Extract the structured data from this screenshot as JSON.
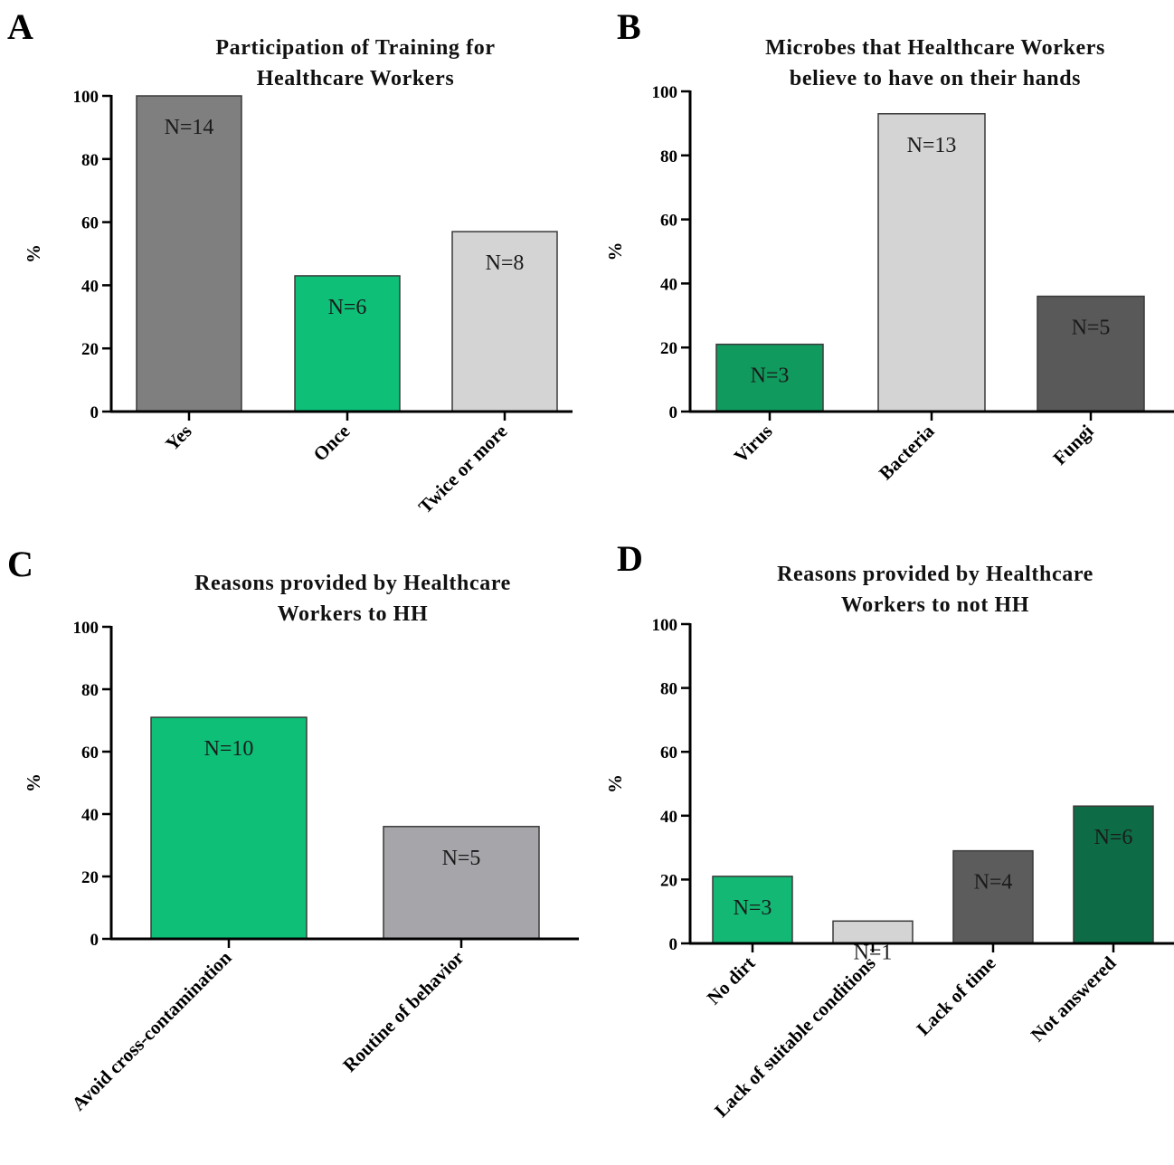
{
  "chart_data": [
    {
      "panel": "A",
      "type": "bar",
      "title_lines": [
        "Participation of Training for",
        "Healthcare Workers"
      ],
      "ylabel": "%",
      "ylim": [
        0,
        100
      ],
      "yticks": [
        "0",
        "20",
        "40",
        "60",
        "80",
        "100"
      ],
      "categories": [
        "Yes",
        "Once",
        "Twice or more"
      ],
      "values": [
        100,
        43,
        57
      ],
      "labels": [
        "N=14",
        "N=6",
        "N=8"
      ],
      "colors": [
        "#7f7f7f",
        "#0dbf77",
        "#d4d4d4"
      ]
    },
    {
      "panel": "B",
      "type": "bar",
      "title_lines": [
        "Microbes that Healthcare Workers",
        "believe to have on their hands"
      ],
      "ylabel": "%",
      "ylim": [
        0,
        100
      ],
      "yticks": [
        "0",
        "20",
        "40",
        "60",
        "80",
        "100"
      ],
      "categories": [
        "Virus",
        "Bacteria",
        "Fungi"
      ],
      "values": [
        21,
        93,
        36
      ],
      "labels": [
        "N=3",
        "N=13",
        "N=5"
      ],
      "colors": [
        "#119a5e",
        "#d4d4d4",
        "#595959"
      ]
    },
    {
      "panel": "C",
      "type": "bar",
      "title_lines": [
        "Reasons provided by Healthcare",
        "Workers to HH"
      ],
      "ylabel": "%",
      "ylim": [
        0,
        100
      ],
      "yticks": [
        "0",
        "20",
        "40",
        "60",
        "80",
        "100"
      ],
      "categories": [
        "Avoid cross-contamination",
        "Routine of behavior"
      ],
      "values": [
        71,
        36
      ],
      "labels": [
        "N=10",
        "N=5"
      ],
      "colors": [
        "#0dbf77",
        "#a5a5aa"
      ]
    },
    {
      "panel": "D",
      "type": "bar",
      "title_lines": [
        "Reasons provided by Healthcare",
        "Workers to not HH"
      ],
      "ylabel": "%",
      "ylim": [
        0,
        100
      ],
      "yticks": [
        "0",
        "20",
        "40",
        "60",
        "80",
        "100"
      ],
      "categories": [
        "No dirt",
        "Lack of suitable conditions",
        "Lack of time",
        "Not answered"
      ],
      "values": [
        21,
        7,
        29,
        43
      ],
      "labels": [
        "N=3",
        "N=1",
        "N=4",
        "N=6"
      ],
      "colors": [
        "#12b873",
        "#d4d4d4",
        "#5c5c5c",
        "#0d6b45"
      ]
    }
  ]
}
